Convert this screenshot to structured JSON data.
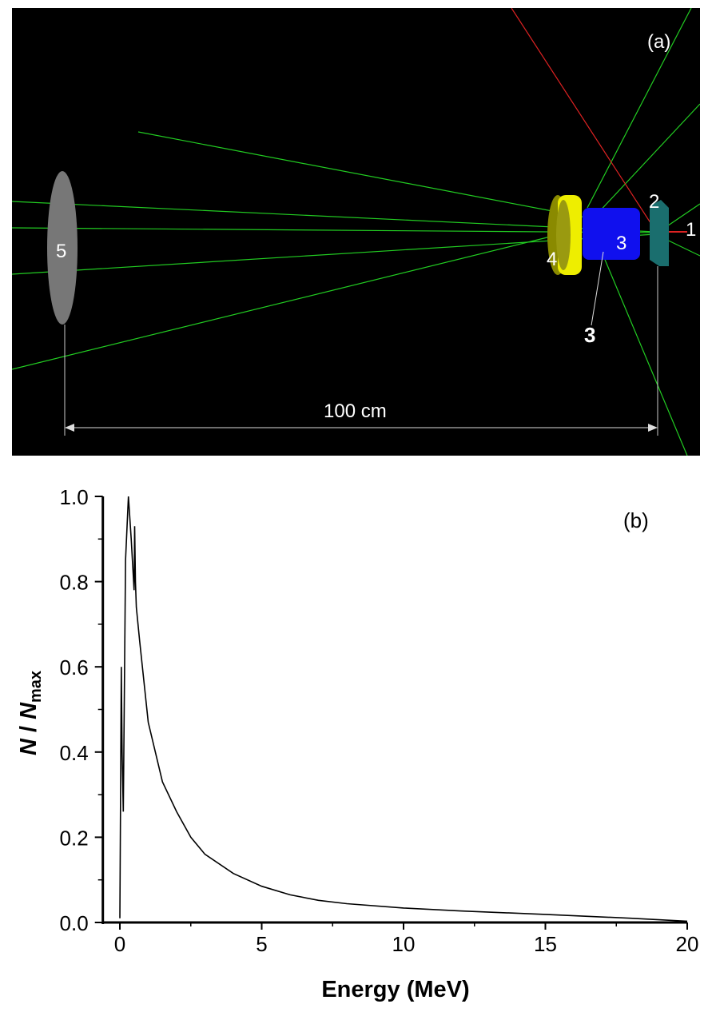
{
  "panel_a": {
    "label": "(a)",
    "component_labels": [
      "1",
      "2",
      "3",
      "3",
      "4",
      "5"
    ],
    "dimension_label": "100 cm",
    "colors": {
      "background": "#000000",
      "tracks": "#22cc22",
      "primary_track": "#dd2222",
      "component_1": "#dd2222",
      "component_2": "#1a6e6e",
      "component_3": "#1010ee",
      "component_4": "#eeee00",
      "component_5": "#777777"
    }
  },
  "chart_data": {
    "type": "line",
    "panel_label": "(b)",
    "xlabel": "Energy (MeV)",
    "ylabel_main": "N",
    "ylabel_sep": " / ",
    "ylabel_sub": "max",
    "xlim": [
      -0.6,
      20
    ],
    "ylim": [
      0,
      1.0
    ],
    "xticks": [
      "0",
      "5",
      "10",
      "15",
      "20"
    ],
    "yticks": [
      "0.0",
      "0.2",
      "0.4",
      "0.6",
      "0.8",
      "1.0"
    ],
    "grid": false,
    "color": "#000000",
    "x": [
      0,
      0.05,
      0.08,
      0.12,
      0.2,
      0.3,
      0.4,
      0.5,
      0.52,
      0.55,
      0.58,
      0.7,
      1.0,
      1.5,
      2,
      2.5,
      3,
      4,
      5,
      6,
      7,
      8,
      10,
      12,
      15,
      18,
      20
    ],
    "y": [
      0.01,
      0.6,
      0.4,
      0.26,
      0.85,
      1.0,
      0.9,
      0.78,
      0.93,
      0.8,
      0.74,
      0.66,
      0.47,
      0.33,
      0.26,
      0.2,
      0.16,
      0.115,
      0.085,
      0.065,
      0.052,
      0.044,
      0.034,
      0.027,
      0.019,
      0.01,
      0.003
    ]
  }
}
